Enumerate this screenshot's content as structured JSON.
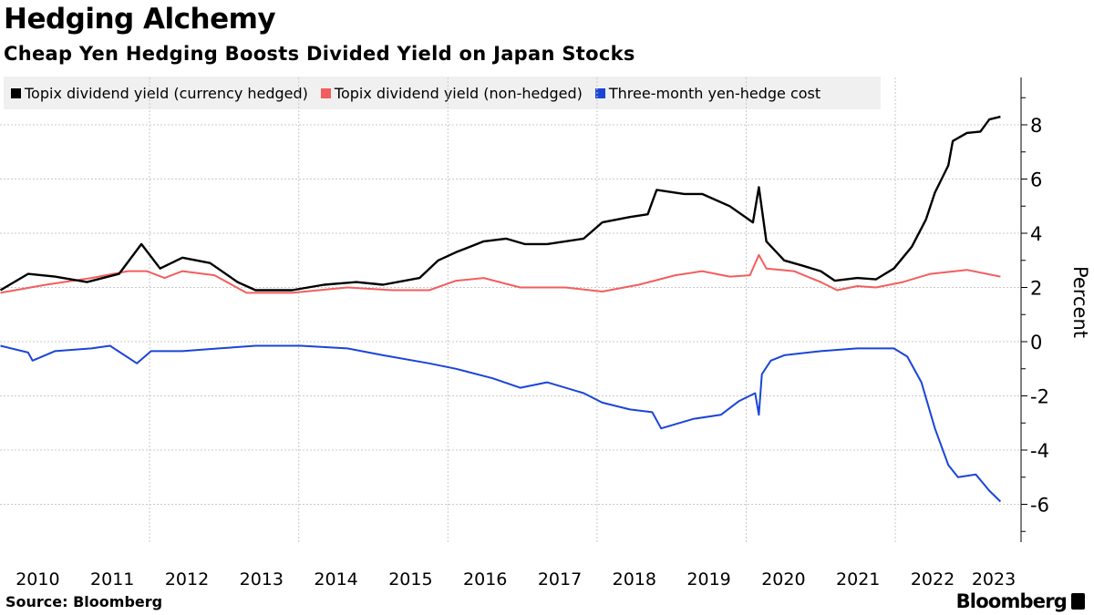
{
  "header": {
    "title": "Hedging Alchemy",
    "subtitle": "Cheap Yen Hedging Boosts Divided Yield on Japan Stocks"
  },
  "footer": {
    "source": "Source: Bloomberg",
    "logo": "Bloomberg"
  },
  "chart_data": {
    "type": "line",
    "title": "Hedging Alchemy",
    "subtitle": "Cheap Yen Hedging Boosts Divided Yield on Japan Stocks",
    "xlabel": "",
    "ylabel": "Percent",
    "x_unit": "decimal year",
    "xlim": [
      2010.0,
      2023.6
    ],
    "ylim": [
      -7.4,
      9.7
    ],
    "x_ticks": [
      "2010",
      "2011",
      "2012",
      "2013",
      "2014",
      "2015",
      "2016",
      "2017",
      "2018",
      "2019",
      "2020",
      "2021",
      "2022",
      "2023"
    ],
    "y_ticks": [
      8,
      6,
      4,
      2,
      0,
      -2,
      -4,
      -6
    ],
    "y_axis_position": "right",
    "grid": true,
    "legend_position": "top",
    "series": [
      {
        "name": "Topix dividend yield (currency hedged)",
        "color": "#000000",
        "x": [
          2010.0,
          2010.37,
          2010.73,
          2011.16,
          2011.59,
          2011.89,
          2012.14,
          2012.44,
          2012.81,
          2013.18,
          2013.42,
          2013.91,
          2014.34,
          2014.77,
          2015.13,
          2015.62,
          2015.87,
          2016.11,
          2016.48,
          2016.78,
          2017.03,
          2017.33,
          2017.82,
          2018.07,
          2018.44,
          2018.68,
          2018.8,
          2019.17,
          2019.41,
          2019.78,
          2020.09,
          2020.17,
          2020.27,
          2020.51,
          2020.76,
          2021.0,
          2021.19,
          2021.49,
          2021.74,
          2021.98,
          2022.22,
          2022.41,
          2022.53,
          2022.71,
          2022.77,
          2022.96,
          2023.14,
          2023.26,
          2023.41
        ],
        "y": [
          1.9,
          2.5,
          2.4,
          2.2,
          2.5,
          3.6,
          2.7,
          3.1,
          2.9,
          2.2,
          1.9,
          1.9,
          2.1,
          2.2,
          2.1,
          2.35,
          3.0,
          3.3,
          3.7,
          3.8,
          3.6,
          3.6,
          3.8,
          4.4,
          4.6,
          4.7,
          5.6,
          5.45,
          5.45,
          5.0,
          4.4,
          5.7,
          3.7,
          3.0,
          2.8,
          2.6,
          2.25,
          2.35,
          2.3,
          2.7,
          3.5,
          4.5,
          5.5,
          6.5,
          7.4,
          7.7,
          7.75,
          8.2,
          8.3
        ]
      },
      {
        "name": "Topix dividend yield (non-hedged)",
        "color": "#f25e5e",
        "x": [
          2010.0,
          2010.61,
          2011.22,
          2011.71,
          2011.96,
          2012.2,
          2012.44,
          2012.87,
          2013.3,
          2013.91,
          2014.65,
          2015.26,
          2015.75,
          2016.11,
          2016.48,
          2016.97,
          2017.58,
          2018.07,
          2018.56,
          2019.05,
          2019.41,
          2019.78,
          2020.05,
          2020.17,
          2020.27,
          2020.64,
          2021.0,
          2021.22,
          2021.49,
          2021.74,
          2022.1,
          2022.47,
          2022.96,
          2023.41
        ],
        "y": [
          1.8,
          2.1,
          2.35,
          2.6,
          2.6,
          2.35,
          2.6,
          2.45,
          1.8,
          1.8,
          2.0,
          1.9,
          1.9,
          2.25,
          2.35,
          2.0,
          2.0,
          1.85,
          2.1,
          2.45,
          2.6,
          2.4,
          2.45,
          3.2,
          2.7,
          2.6,
          2.2,
          1.9,
          2.05,
          2.0,
          2.2,
          2.5,
          2.65,
          2.4
        ]
      },
      {
        "name": "Three-month yen-hedge cost",
        "color": "#1a45d6",
        "x": [
          2010.0,
          2010.37,
          2010.43,
          2010.73,
          2011.22,
          2011.47,
          2011.83,
          2012.02,
          2012.44,
          2012.93,
          2013.42,
          2014.03,
          2014.65,
          2015.13,
          2015.75,
          2016.11,
          2016.6,
          2016.97,
          2017.33,
          2017.82,
          2018.07,
          2018.44,
          2018.74,
          2018.86,
          2019.29,
          2019.66,
          2019.9,
          2020.12,
          2020.17,
          2020.21,
          2020.33,
          2020.51,
          2021.0,
          2021.49,
          2021.98,
          2022.16,
          2022.35,
          2022.53,
          2022.71,
          2022.84,
          2023.08,
          2023.26,
          2023.41
        ],
        "y": [
          -0.15,
          -0.4,
          -0.7,
          -0.35,
          -0.25,
          -0.15,
          -0.8,
          -0.35,
          -0.35,
          -0.25,
          -0.15,
          -0.15,
          -0.25,
          -0.5,
          -0.8,
          -1.0,
          -1.35,
          -1.7,
          -1.5,
          -1.9,
          -2.25,
          -2.5,
          -2.6,
          -3.2,
          -2.85,
          -2.7,
          -2.2,
          -1.9,
          -2.7,
          -1.2,
          -0.7,
          -0.5,
          -0.35,
          -0.25,
          -0.25,
          -0.55,
          -1.5,
          -3.2,
          -4.55,
          -5.0,
          -4.9,
          -5.5,
          -5.9
        ]
      }
    ]
  }
}
